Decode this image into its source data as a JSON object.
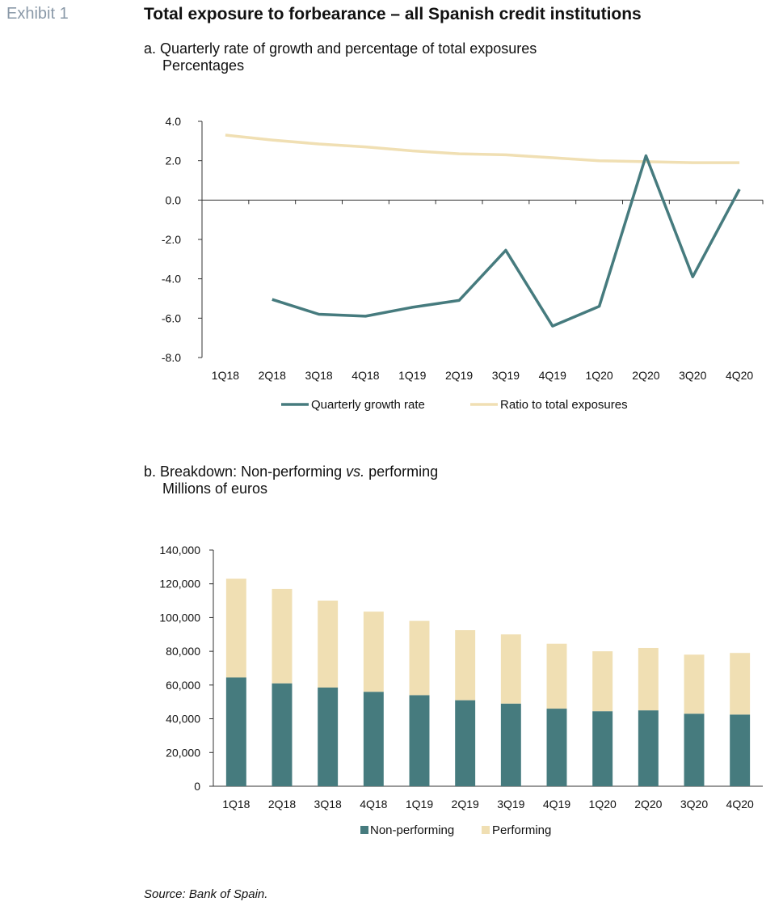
{
  "exhibit_label": "Exhibit 1",
  "title": "Total exposure to forbearance – all Spanish credit institutions",
  "source": "Source: Bank of Spain.",
  "colors": {
    "teal": "#467b7e",
    "beige": "#f0dfb3",
    "axis": "#333333"
  },
  "chart_data": [
    {
      "type": "line",
      "subtitle_prefix": "a. Quarterly rate of growth and percentage of total exposures",
      "unit": "Percentages",
      "categories": [
        "1Q18",
        "2Q18",
        "3Q18",
        "4Q18",
        "1Q19",
        "2Q19",
        "3Q19",
        "4Q19",
        "1Q20",
        "2Q20",
        "3Q20",
        "4Q20"
      ],
      "ylim": [
        -8,
        4
      ],
      "yticks": [
        "4.0",
        "2.0",
        "0.0",
        "-2.0",
        "-4.0",
        "-6.0",
        "-8.0"
      ],
      "legend_position": "bottom",
      "series": [
        {
          "name": "Quarterly growth rate",
          "color": "#467b7e",
          "values": [
            null,
            -5.05,
            -5.8,
            -5.9,
            -5.45,
            -5.1,
            -2.55,
            -6.4,
            -5.4,
            2.25,
            -3.9,
            0.55
          ]
        },
        {
          "name": "Ratio to total exposures",
          "color": "#f0dfb3",
          "values": [
            3.3,
            3.05,
            2.85,
            2.7,
            2.5,
            2.35,
            2.3,
            2.15,
            2.0,
            1.95,
            1.9,
            1.9
          ]
        }
      ]
    },
    {
      "type": "bar",
      "stacked": true,
      "subtitle_prefix": "b. Breakdown: Non-performing ",
      "subtitle_italic": "vs.",
      "subtitle_suffix": " performing",
      "unit": "Millions of euros",
      "categories": [
        "1Q18",
        "2Q18",
        "3Q18",
        "4Q18",
        "1Q19",
        "2Q19",
        "3Q19",
        "4Q19",
        "1Q20",
        "2Q20",
        "3Q20",
        "4Q20"
      ],
      "ylim": [
        0,
        140000
      ],
      "yticks": [
        "140,000",
        "120,000",
        "100,000",
        "80,000",
        "60,000",
        "40,000",
        "20,000",
        "0"
      ],
      "legend_position": "bottom",
      "series": [
        {
          "name": "Non-performing",
          "color": "#467b7e",
          "values": [
            64500,
            61000,
            58500,
            56000,
            54000,
            51000,
            49000,
            46000,
            44500,
            45000,
            43000,
            42500
          ]
        },
        {
          "name": "Performing",
          "color": "#f0dfb3",
          "values": [
            58500,
            56000,
            51500,
            47500,
            44000,
            41500,
            41000,
            38500,
            35500,
            37000,
            35000,
            36500
          ]
        }
      ]
    }
  ]
}
